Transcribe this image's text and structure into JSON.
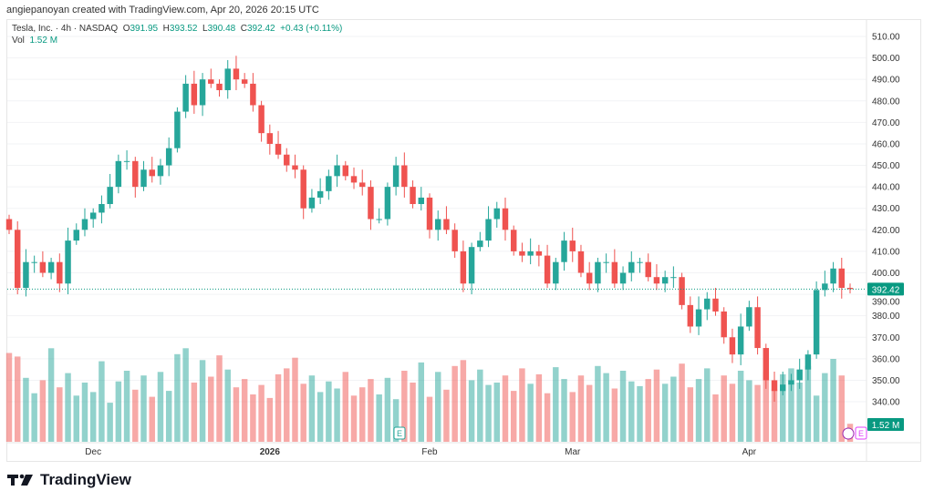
{
  "credit": "angiepanoyan created with TradingView.com, Apr 20, 2026 20:15 UTC",
  "legend": {
    "symbol": "Tesla, Inc. · 4h · NASDAQ",
    "o_label": "O",
    "o": "391.95",
    "h_label": "H",
    "h": "393.52",
    "l_label": "L",
    "l": "390.48",
    "c_label": "C",
    "c": "392.42",
    "change": "+0.43 (+0.11%)",
    "vol_label": "Vol",
    "vol": "1.52 M"
  },
  "logo": "TradingView",
  "markers": {
    "earnings": "E"
  },
  "colors": {
    "up": "#26a69a",
    "down": "#ef5350",
    "last": "#089981"
  },
  "chart_data": {
    "type": "candlestick",
    "title": "Tesla, Inc. · 4h · NASDAQ",
    "y_ticks": [
      510,
      500,
      490,
      480,
      470,
      460,
      450,
      440,
      430,
      420,
      410,
      400,
      390,
      380,
      370,
      360,
      350,
      340
    ],
    "ylim": [
      336,
      514
    ],
    "last_price": "392.42",
    "last_volume": "1.52 M",
    "x_ticks": [
      {
        "label": "Dec",
        "idx": 10,
        "bold": false
      },
      {
        "label": "2026",
        "idx": 31,
        "bold": true
      },
      {
        "label": "Feb",
        "idx": 50,
        "bold": false
      },
      {
        "label": "Mar",
        "idx": 67,
        "bold": false
      },
      {
        "label": "Apr",
        "idx": 88,
        "bold": false
      }
    ],
    "first_open": 425,
    "closes": [
      420,
      393,
      405,
      405,
      400,
      405,
      395,
      415,
      420,
      425,
      428,
      432,
      440,
      452,
      452,
      440,
      448,
      445,
      450,
      458,
      475,
      488,
      478,
      490,
      488,
      485,
      495,
      490,
      488,
      478,
      465,
      460,
      455,
      450,
      448,
      430,
      435,
      438,
      445,
      450,
      445,
      442,
      440,
      425,
      425,
      440,
      450,
      440,
      432,
      435,
      420,
      425,
      420,
      410,
      395,
      412,
      415,
      425,
      430,
      420,
      410,
      408,
      410,
      408,
      395,
      405,
      415,
      410,
      400,
      395,
      405,
      405,
      395,
      400,
      405,
      405,
      398,
      395,
      398,
      398,
      385,
      375,
      383,
      388,
      382,
      370,
      362,
      375,
      384,
      365,
      350,
      345,
      348,
      350,
      355,
      362,
      392,
      395,
      402,
      393,
      392.42
    ],
    "volume_m": [
      7.5,
      7.2,
      5.4,
      4.1,
      5.2,
      7.9,
      4.6,
      5.8,
      3.9,
      5.0,
      4.2,
      6.8,
      3.3,
      5.1,
      6.0,
      4.4,
      5.6,
      3.8,
      5.9,
      4.3,
      7.4,
      7.9,
      5.0,
      6.9,
      5.5,
      7.3,
      6.1,
      4.6,
      5.3,
      4.0,
      4.8,
      3.7,
      5.7,
      6.2,
      7.1,
      4.9,
      5.6,
      4.2,
      5.1,
      4.5,
      5.9,
      3.9,
      4.6,
      5.3,
      4.0,
      5.4,
      3.6,
      6.0,
      5.0,
      6.7,
      3.8,
      5.9,
      4.4,
      6.4,
      6.9,
      5.2,
      6.1,
      4.8,
      5.0,
      5.6,
      4.3,
      6.2,
      4.9,
      5.7,
      4.1,
      6.3,
      5.3,
      4.2,
      5.6,
      4.8,
      6.4,
      5.8,
      4.5,
      6.0,
      5.1,
      4.7,
      5.3,
      6.1,
      4.9,
      5.5,
      6.6,
      4.6,
      5.3,
      6.2,
      4.0,
      5.6,
      4.9,
      6.0,
      5.2,
      4.8,
      5.9,
      4.4,
      5.7,
      6.2,
      5.0,
      6.4,
      3.9,
      5.8,
      7.0,
      5.6,
      1.52
    ]
  }
}
